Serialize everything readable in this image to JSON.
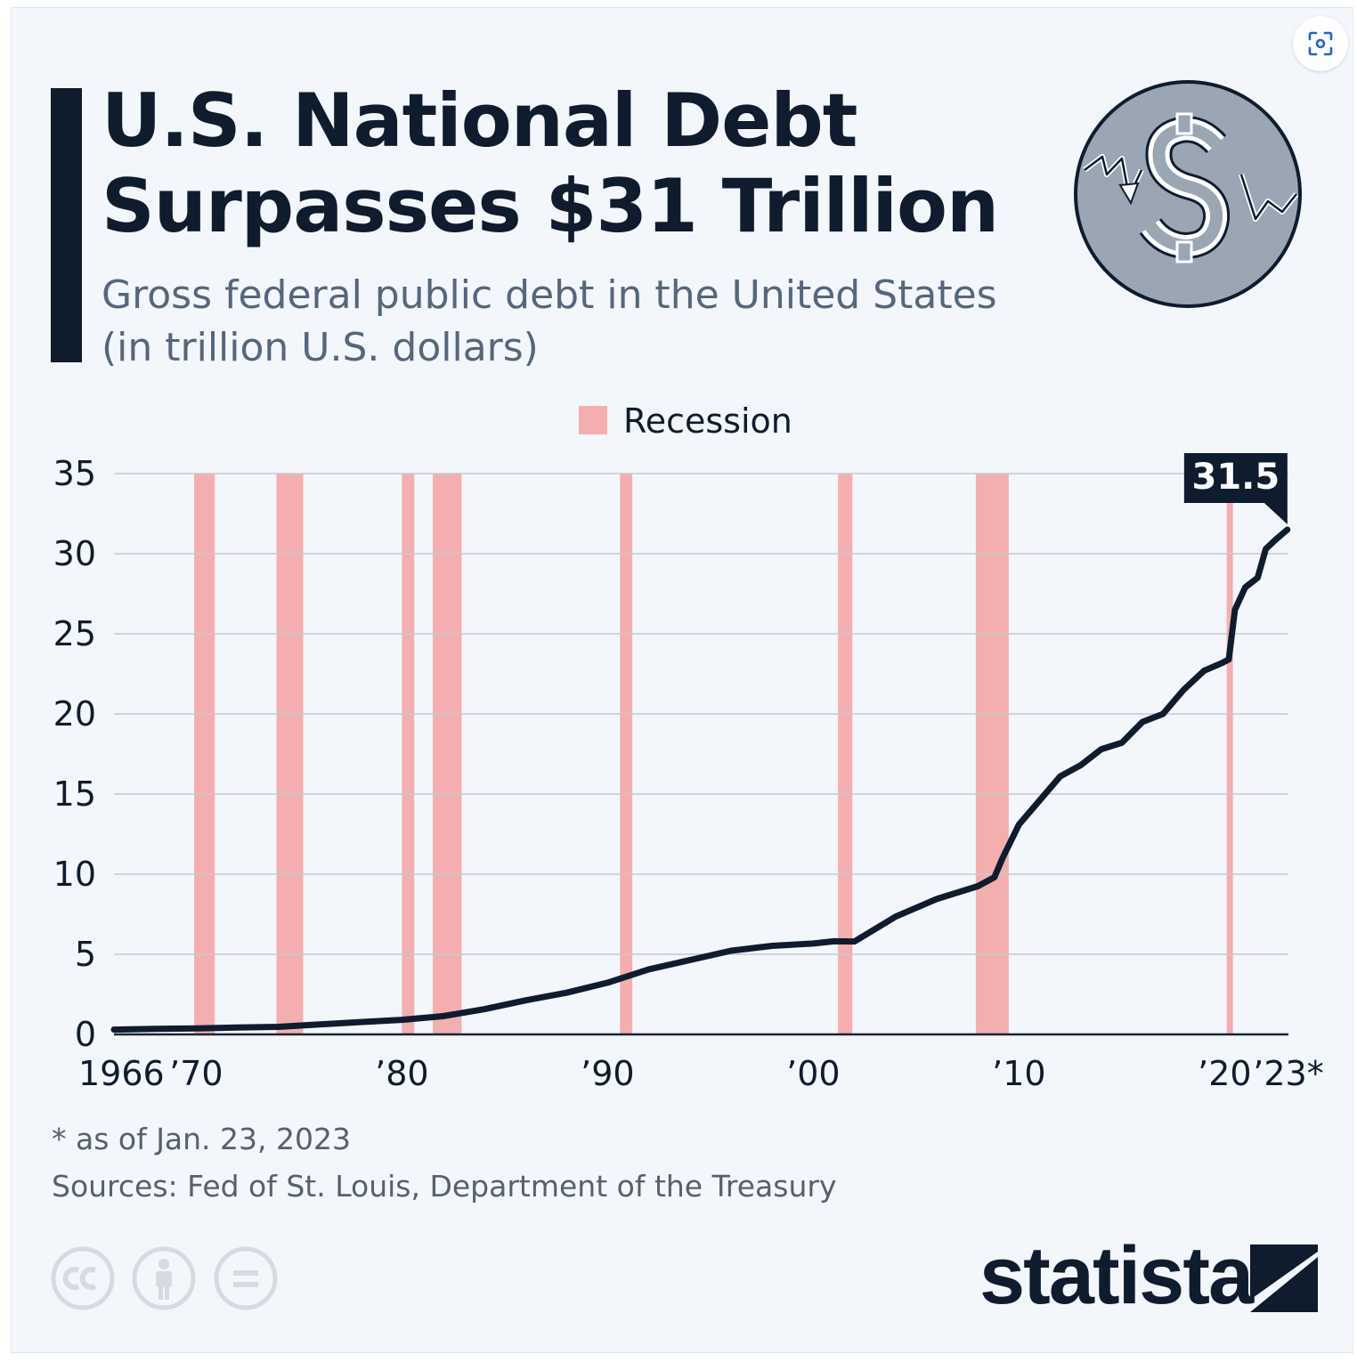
{
  "header": {
    "title_line1": "U.S. National Debt",
    "title_line2": "Surpasses $31 Trillion",
    "subtitle_line1": "Gross federal public debt in the United States",
    "subtitle_line2": "(in trillion U.S. dollars)"
  },
  "footer": {
    "footnote": "* as of Jan. 23, 2023",
    "sources": "Sources: Fed of St. Louis, Department of the Treasury",
    "brand": "statista"
  },
  "icons": {
    "lens": "image-search-icon",
    "coin": "falling-dollar-coin-icon",
    "cc": "creative-commons-icon",
    "by": "attribution-person-icon",
    "nd": "no-derivatives-icon",
    "logo": "statista-logo-icon"
  },
  "colors": {
    "line": "#0f1c2e",
    "recession": "#f4aeb0",
    "grid": "#c4c9d2",
    "text": "#0f1c2e",
    "subtitle": "#55667e",
    "coin": "#9aa6b4"
  },
  "chart_data": {
    "type": "line",
    "title": "U.S. National Debt Surpasses $31 Trillion",
    "subtitle": "Gross federal public debt in the United States (in trillion U.S. dollars)",
    "xlabel": "",
    "ylabel": "",
    "ylim": [
      0,
      35
    ],
    "xlim": [
      1966,
      2023.1
    ],
    "y_ticks": [
      0,
      5,
      10,
      15,
      20,
      25,
      30,
      35
    ],
    "x_ticks": [
      {
        "value": 1966,
        "label": "1966"
      },
      {
        "value": 1970,
        "label": "’70"
      },
      {
        "value": 1980,
        "label": "’80"
      },
      {
        "value": 1990,
        "label": "’90"
      },
      {
        "value": 2000,
        "label": "’00"
      },
      {
        "value": 2010,
        "label": "’10"
      },
      {
        "value": 2020,
        "label": "’20"
      },
      {
        "value": 2023.1,
        "label": "’23*"
      }
    ],
    "grid": true,
    "legend": {
      "position": "top-center",
      "entries": [
        "Recession"
      ]
    },
    "recessions": [
      {
        "start": 1969.9,
        "end": 1970.9
      },
      {
        "start": 1973.9,
        "end": 1975.2
      },
      {
        "start": 1980.0,
        "end": 1980.6
      },
      {
        "start": 1981.5,
        "end": 1982.9
      },
      {
        "start": 1990.6,
        "end": 1991.2
      },
      {
        "start": 2001.2,
        "end": 2001.9
      },
      {
        "start": 2007.9,
        "end": 2009.5
      },
      {
        "start": 2020.1,
        "end": 2020.4
      }
    ],
    "series": [
      {
        "name": "Gross federal public debt",
        "x": [
          1966,
          1968,
          1970,
          1972,
          1974,
          1976,
          1978,
          1980,
          1982,
          1984,
          1986,
          1988,
          1990,
          1992,
          1994,
          1996,
          1998,
          2000,
          2001,
          2002,
          2004,
          2006,
          2008,
          2008.8,
          2009.2,
          2010,
          2011,
          2012,
          2013,
          2014,
          2015,
          2016,
          2017,
          2018,
          2019,
          2019.9,
          2020.2,
          2020.5,
          2021,
          2021.6,
          2022,
          2022.5,
          2023.05
        ],
        "values": [
          0.3,
          0.35,
          0.38,
          0.43,
          0.47,
          0.62,
          0.77,
          0.91,
          1.14,
          1.57,
          2.12,
          2.6,
          3.23,
          4.06,
          4.64,
          5.22,
          5.53,
          5.67,
          5.81,
          5.8,
          7.35,
          8.45,
          9.25,
          9.8,
          11.0,
          13.1,
          14.6,
          16.1,
          16.8,
          17.8,
          18.2,
          19.5,
          20.0,
          21.5,
          22.7,
          23.2,
          23.4,
          26.5,
          27.9,
          28.5,
          30.3,
          30.9,
          31.5
        ]
      }
    ],
    "annotation": {
      "label": "31.5",
      "x": 2023.05,
      "value": 31.5
    }
  }
}
